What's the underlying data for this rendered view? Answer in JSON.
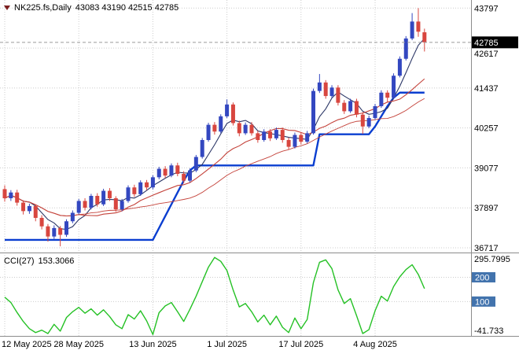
{
  "header": {
    "symbol_period": "NK225.fs,Daily",
    "ohlc": "43083 43190 42515 42785"
  },
  "indicator_header": {
    "label": "CCI(27)",
    "value": "153.3066"
  },
  "price_axis": {
    "ticks": [
      43797,
      42617,
      41437,
      40257,
      39077,
      37897,
      36717
    ],
    "current_price_label": "42785"
  },
  "time_axis": {
    "ticks": [
      {
        "label": "12 May 2025",
        "index": 0
      },
      {
        "label": "28 May 2025",
        "index": 12
      },
      {
        "label": "13 Jun 2025",
        "index": 24
      },
      {
        "label": "1 Jul 2025",
        "index": 36
      },
      {
        "label": "17 Jul 2025",
        "index": 48
      },
      {
        "label": "4 Aug 2025",
        "index": 60
      }
    ]
  },
  "indicator_axis": {
    "max_label": "295.7995",
    "levels": [
      "200",
      "100"
    ],
    "min_label": "-41.733"
  },
  "colors": {
    "bull": "#3347c0",
    "bear": "#d8463f",
    "support_line": "#0a3ed0",
    "ma_fast": "#2b3666",
    "ma_mid": "#c4423a",
    "ma_slow": "#c4423a",
    "cci_line": "#25c125",
    "grid": "#cccccc",
    "axis_text": "#000000",
    "level_box_bg": "#4273ad",
    "price_box_bg": "#000000",
    "price_box_text": "#ffffff",
    "separator": "#8c8c8c",
    "collapse_icon": "#7c1f1f"
  },
  "chart_data": {
    "type": "candlestick",
    "symbol": "NK225.fs",
    "timeframe": "Daily",
    "last_ohlc": {
      "open": 43083,
      "high": 43190,
      "low": 42515,
      "close": 42785
    },
    "y_range_main": [
      36600,
      43990
    ],
    "y_range_indicator": [
      -41.733,
      295.7995
    ],
    "price_gridlines": [
      43797,
      42617,
      41437,
      40257,
      39077,
      37897,
      36717
    ],
    "cci_levels": [
      200,
      100
    ],
    "moving_average_periods": [
      5,
      13,
      26
    ],
    "open": [
      38450,
      38180,
      38350,
      38050,
      37800,
      37950,
      37600,
      37350,
      37050,
      37300,
      37100,
      37500,
      37750,
      38100,
      37900,
      38250,
      38000,
      38400,
      38180,
      37850,
      38100,
      38500,
      38300,
      38650,
      38500,
      38800,
      39050,
      38850,
      39150,
      38900,
      38700,
      39000,
      39400,
      39900,
      40350,
      40150,
      40600,
      40950,
      40400,
      40100,
      40350,
      40100,
      39900,
      40150,
      39950,
      40200,
      39900,
      39700,
      40050,
      39850,
      40100,
      41350,
      41600,
      41200,
      41450,
      41000,
      40750,
      41050,
      40650,
      40300,
      40550,
      40900,
      41300,
      41150,
      41800,
      42300,
      42900,
      43400,
      43083
    ],
    "high": [
      38560,
      38420,
      38430,
      38120,
      38020,
      38000,
      37680,
      37420,
      37380,
      37360,
      37560,
      37820,
      38160,
      38180,
      38310,
      38330,
      38460,
      38480,
      38240,
      38160,
      38560,
      38580,
      38710,
      38720,
      38860,
      39110,
      39130,
      39210,
      39230,
      38980,
      39060,
      39460,
      39960,
      40410,
      40430,
      40660,
      41100,
      41010,
      40470,
      40420,
      40430,
      40170,
      40220,
      40220,
      40270,
      40270,
      39970,
      40120,
      40130,
      40170,
      41420,
      41850,
      41670,
      41520,
      41520,
      41080,
      41120,
      41120,
      40720,
      40620,
      40970,
      41370,
      41370,
      41870,
      42370,
      42970,
      43650,
      43797,
      43190
    ],
    "low": [
      38080,
      38100,
      37960,
      37700,
      37720,
      37500,
      37260,
      36900,
      36980,
      36760,
      37040,
      37440,
      37700,
      37820,
      37850,
      37930,
      37950,
      38100,
      37780,
      37800,
      38050,
      38220,
      38250,
      38420,
      38440,
      38740,
      38780,
      38800,
      38830,
      38620,
      38650,
      38950,
      39350,
      39850,
      40060,
      40100,
      40550,
      40330,
      40010,
      40050,
      40030,
      39820,
      39850,
      39870,
      39900,
      39820,
      39610,
      39650,
      39770,
      39800,
      40060,
      41290,
      41120,
      41140,
      40920,
      40670,
      40700,
      40570,
      40080,
      40250,
      40500,
      40850,
      41020,
      41100,
      41750,
      42250,
      42850,
      42950,
      42515
    ],
    "close": [
      38180,
      38350,
      38050,
      37800,
      37950,
      37600,
      37350,
      37050,
      37300,
      37100,
      37500,
      37750,
      38100,
      37900,
      38250,
      38000,
      38400,
      38180,
      37850,
      38100,
      38500,
      38300,
      38650,
      38500,
      38800,
      39050,
      38850,
      39150,
      38900,
      38700,
      39000,
      39400,
      39900,
      40350,
      40150,
      40600,
      40950,
      40400,
      40100,
      40350,
      40100,
      39900,
      40150,
      39950,
      40200,
      39900,
      39700,
      40050,
      39850,
      40100,
      41350,
      41600,
      41200,
      41450,
      41000,
      40750,
      41050,
      40650,
      40300,
      40550,
      40900,
      41300,
      41150,
      41800,
      42300,
      42900,
      43400,
      43100,
      42785
    ],
    "support_line": [
      36950,
      36950,
      36950,
      36950,
      36950,
      36950,
      36950,
      36950,
      36950,
      36950,
      36950,
      36950,
      36950,
      36950,
      36950,
      36950,
      36950,
      36950,
      36950,
      36950,
      36950,
      36950,
      36950,
      36950,
      36950,
      37300,
      37650,
      38000,
      38350,
      38700,
      39000,
      39150,
      39150,
      39150,
      39150,
      39150,
      39150,
      39150,
      39150,
      39150,
      39150,
      39150,
      39150,
      39150,
      39150,
      39150,
      39150,
      39150,
      39150,
      39150,
      39150,
      40070,
      40070,
      40070,
      40070,
      40070,
      40070,
      40070,
      40070,
      40070,
      40300,
      40600,
      40900,
      41150,
      41300,
      41300,
      41300,
      41300,
      41300
    ],
    "cci": {
      "period": 27,
      "last_value": 153.3066,
      "values": [
        118,
        96,
        55,
        18,
        -12,
        -28,
        -18,
        -32,
        6,
        -22,
        34,
        58,
        76,
        52,
        70,
        44,
        66,
        38,
        4,
        -12,
        46,
        28,
        62,
        20,
        -36,
        54,
        82,
        96,
        58,
        18,
        68,
        122,
        182,
        242,
        282,
        266,
        228,
        148,
        78,
        92,
        58,
        16,
        44,
        4,
        40,
        -6,
        -28,
        32,
        -12,
        26,
        178,
        262,
        272,
        236,
        148,
        92,
        112,
        42,
        -32,
        -16,
        62,
        122,
        102,
        162,
        202,
        232,
        252,
        212,
        153.3066
      ]
    }
  }
}
